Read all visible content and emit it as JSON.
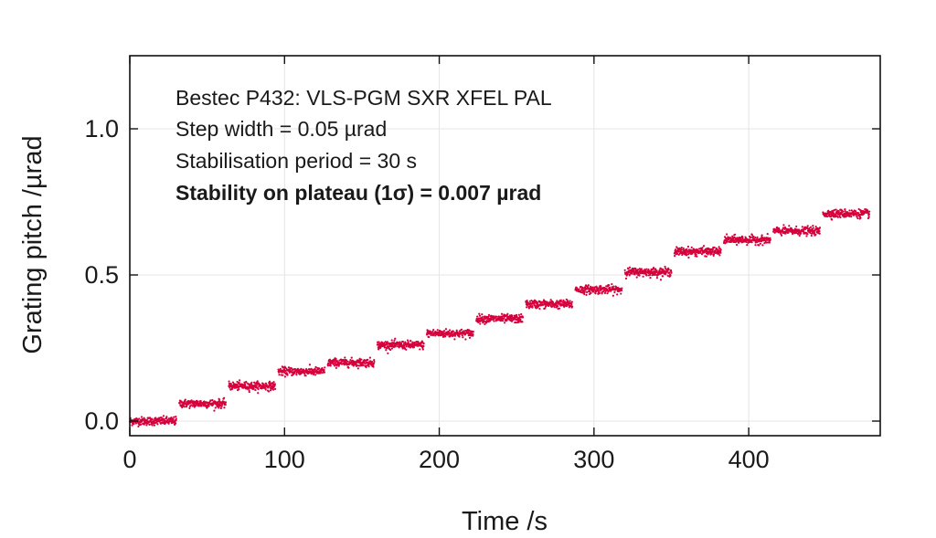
{
  "chart_data": {
    "type": "scatter",
    "title": "",
    "xlabel": "Time /s",
    "ylabel": "Grating pitch /µrad",
    "xlim": [
      0,
      485
    ],
    "ylim": [
      -0.05,
      1.25
    ],
    "x_ticks": [
      0,
      100,
      200,
      300,
      400
    ],
    "y_ticks": [
      0.0,
      0.5,
      1.0
    ],
    "x_tick_labels": [
      "0",
      "100",
      "200",
      "300",
      "400"
    ],
    "y_tick_labels": [
      "0.0",
      "0.5",
      "1.0"
    ],
    "grid": true,
    "legend": "none",
    "marker_color": "#d6003c",
    "annotations": [
      "Bestec P432: VLS-PGM SXR XFEL PAL",
      "Step width = 0.05 µrad",
      "Stabilisation period = 30 s",
      "Stability on plateau (1σ) = 0.007 µrad"
    ],
    "series": [
      {
        "plateaus": [
          {
            "x_start": 0,
            "x_end": 30,
            "y": 0.0
          },
          {
            "x_start": 32,
            "x_end": 62,
            "y": 0.06
          },
          {
            "x_start": 64,
            "x_end": 94,
            "y": 0.12
          },
          {
            "x_start": 96,
            "x_end": 126,
            "y": 0.17
          },
          {
            "x_start": 128,
            "x_end": 158,
            "y": 0.2
          },
          {
            "x_start": 160,
            "x_end": 190,
            "y": 0.26
          },
          {
            "x_start": 192,
            "x_end": 222,
            "y": 0.3
          },
          {
            "x_start": 224,
            "x_end": 254,
            "y": 0.35
          },
          {
            "x_start": 256,
            "x_end": 286,
            "y": 0.4
          },
          {
            "x_start": 288,
            "x_end": 318,
            "y": 0.45
          },
          {
            "x_start": 320,
            "x_end": 350,
            "y": 0.51
          },
          {
            "x_start": 352,
            "x_end": 382,
            "y": 0.58
          },
          {
            "x_start": 384,
            "x_end": 414,
            "y": 0.62
          },
          {
            "x_start": 416,
            "x_end": 446,
            "y": 0.65
          },
          {
            "x_start": 448,
            "x_end": 478,
            "y": 0.71
          }
        ],
        "sigma": 0.007
      }
    ]
  }
}
